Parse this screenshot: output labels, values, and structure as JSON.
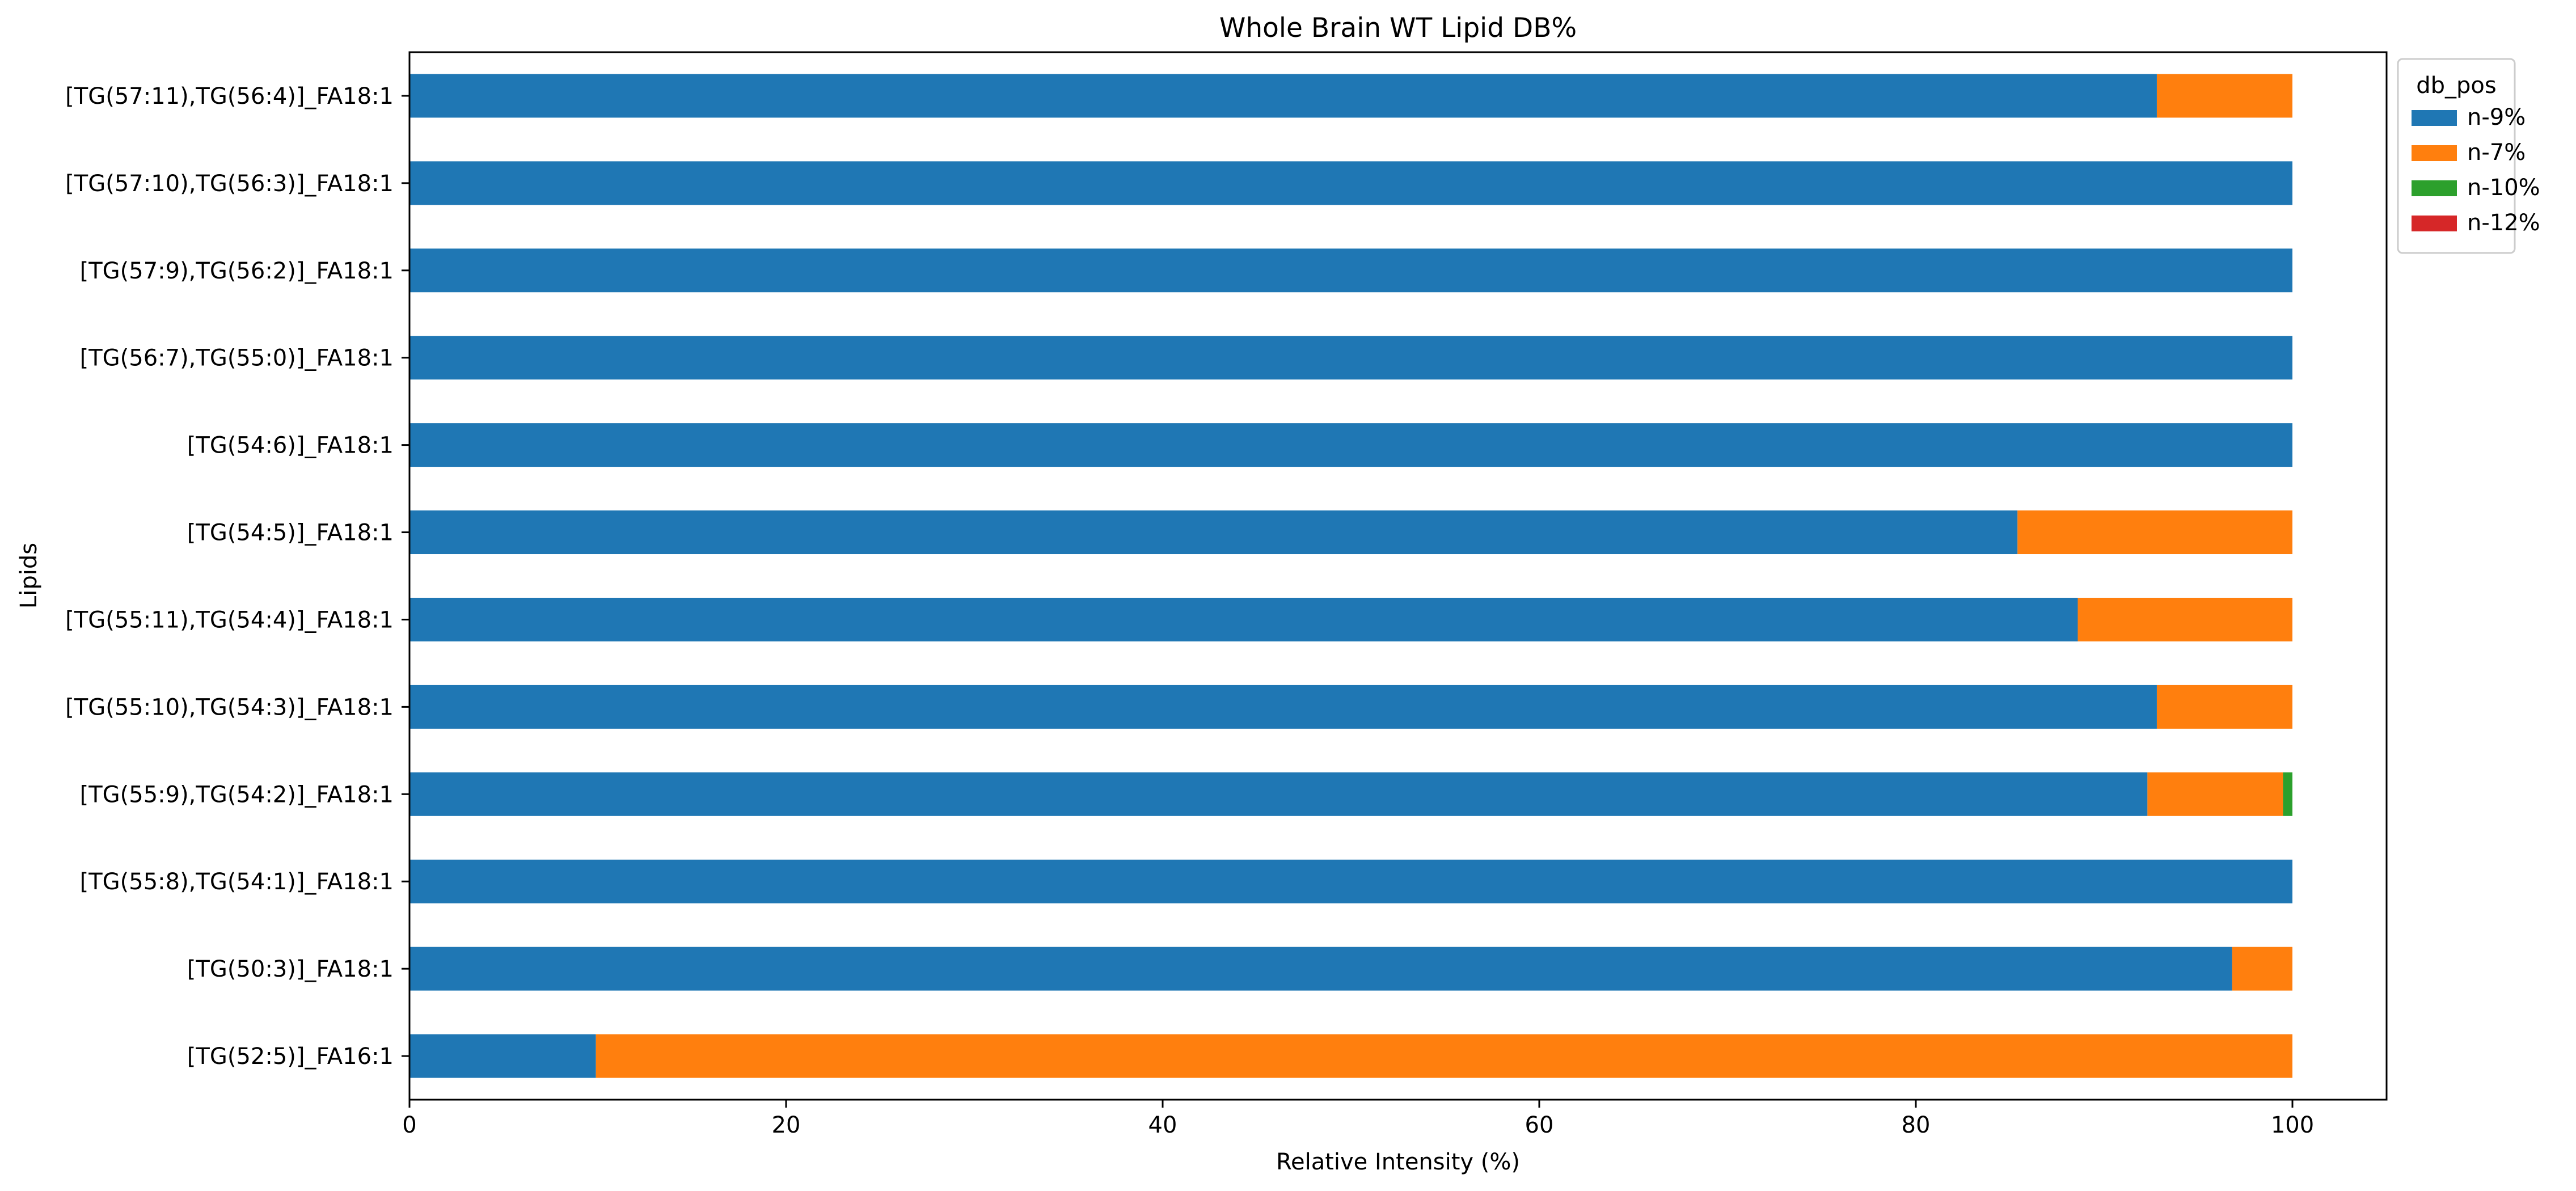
{
  "chart_data": {
    "type": "bar",
    "orientation": "horizontal",
    "stacked": true,
    "title": "Whole Brain WT Lipid DB%",
    "xlabel": "Relative Intensity (%)",
    "ylabel": "Lipids",
    "xlim": [
      0,
      105
    ],
    "xticks": [
      0,
      20,
      40,
      60,
      80,
      100
    ],
    "grid": false,
    "legend": {
      "title": "db_pos",
      "placement": "outside-top-right",
      "entries": [
        "n-9%",
        "n-7%",
        "n-10%",
        "n-12%"
      ]
    },
    "categories": [
      "[TG(57:11),TG(56:4)]_FA18:1",
      "[TG(57:10),TG(56:3)]_FA18:1",
      "[TG(57:9),TG(56:2)]_FA18:1",
      "[TG(56:7),TG(55:0)]_FA18:1",
      "[TG(54:6)]_FA18:1",
      "[TG(54:5)]_FA18:1",
      "[TG(55:11),TG(54:4)]_FA18:1",
      "[TG(55:10),TG(54:3)]_FA18:1",
      "[TG(55:9),TG(54:2)]_FA18:1",
      "[TG(55:8),TG(54:1)]_FA18:1",
      "[TG(50:3)]_FA18:1",
      "[TG(52:5)]_FA16:1"
    ],
    "series": [
      {
        "name": "n-9%",
        "color": "#1f77b4",
        "values": [
          92.8,
          100,
          100,
          100,
          100,
          85.4,
          88.6,
          92.8,
          92.3,
          100,
          96.8,
          9.9
        ]
      },
      {
        "name": "n-7%",
        "color": "#ff7f0e",
        "values": [
          7.2,
          0,
          0,
          0,
          0,
          14.6,
          11.4,
          7.2,
          7.2,
          0,
          3.2,
          90.1
        ]
      },
      {
        "name": "n-10%",
        "color": "#2ca02c",
        "values": [
          0,
          0,
          0,
          0,
          0,
          0,
          0,
          0,
          0.5,
          0,
          0,
          0
        ]
      },
      {
        "name": "n-12%",
        "color": "#d62728",
        "values": [
          0,
          0,
          0,
          0,
          0,
          0,
          0,
          0,
          0,
          0,
          0,
          0
        ]
      }
    ]
  }
}
